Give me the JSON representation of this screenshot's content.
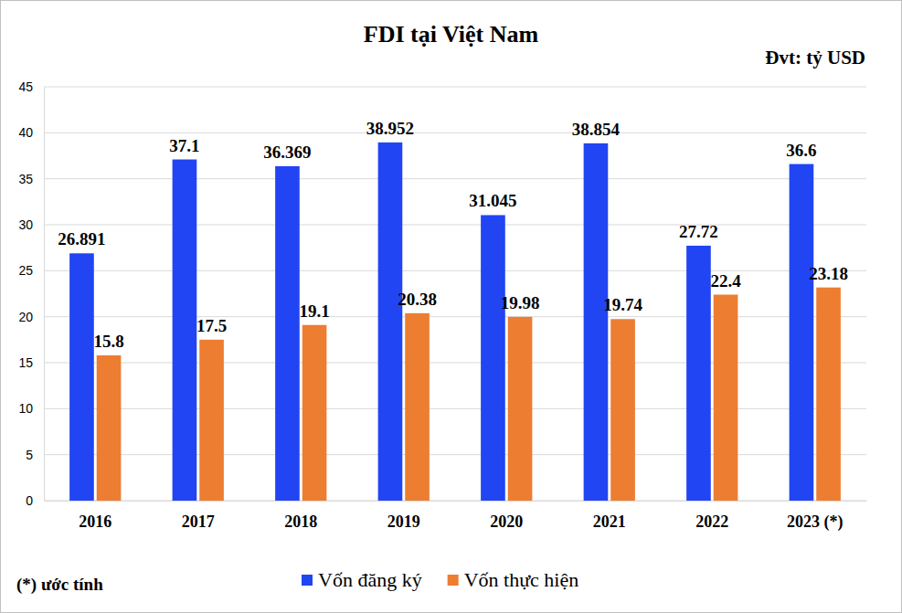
{
  "chart_data": {
    "type": "bar",
    "title": "FDI tại Việt Nam",
    "subtitle": "Đvt: tỷ USD",
    "annotations": [
      "(*) ước tính"
    ],
    "categories": [
      "2016",
      "2017",
      "2018",
      "2019",
      "2020",
      "2021",
      "2022",
      "2023 (*)"
    ],
    "series": [
      {
        "name": "Vốn đăng ký",
        "color": "#2145f2",
        "values": [
          26.891,
          37.1,
          36.369,
          38.952,
          31.045,
          38.854,
          27.72,
          36.6
        ]
      },
      {
        "name": "Vốn thực hiện",
        "color": "#ed7d31",
        "values": [
          15.8,
          17.5,
          19.1,
          20.38,
          19.98,
          19.74,
          22.4,
          23.18
        ]
      }
    ],
    "ylim": [
      0,
      45
    ],
    "yticks": [
      0,
      5,
      10,
      15,
      20,
      25,
      30,
      35,
      40,
      45
    ],
    "grid": true,
    "data_labels": true,
    "legend": "bottom"
  }
}
